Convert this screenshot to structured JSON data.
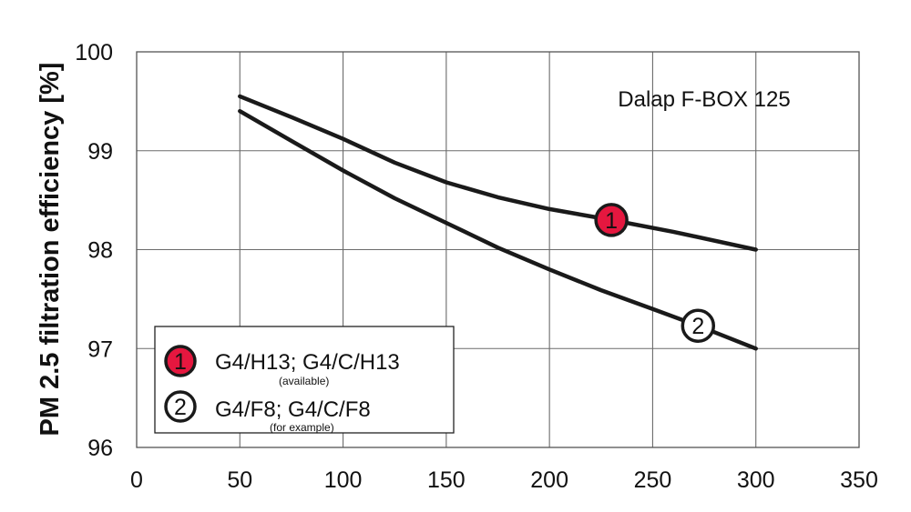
{
  "chart_data": {
    "type": "line",
    "title": "",
    "annotation": "Dalap F-BOX 125",
    "xlabel": "",
    "ylabel": "PM 2.5 filtration efficiency [%]",
    "xlim": [
      0,
      350
    ],
    "ylim": [
      96,
      100
    ],
    "xticks": [
      0,
      50,
      100,
      150,
      200,
      250,
      300,
      350
    ],
    "yticks": [
      96,
      97,
      98,
      99,
      100
    ],
    "xtick_labels": [
      "0",
      "50",
      "100",
      "150",
      "200",
      "250",
      "300",
      "350"
    ],
    "ytick_labels": [
      "96",
      "97",
      "98",
      "99",
      "100"
    ],
    "grid": true,
    "legend_position": "bottom-left",
    "series": [
      {
        "marker_label": "1",
        "legend_text": "G4/H13; G4/C/H13",
        "legend_note": "(available)",
        "marker_color": "#e5173f",
        "marker_at_x": 230,
        "x": [
          50,
          75,
          100,
          125,
          150,
          175,
          200,
          230,
          260,
          300
        ],
        "y": [
          99.55,
          99.34,
          99.12,
          98.88,
          98.68,
          98.53,
          98.41,
          98.3,
          98.18,
          98.0
        ]
      },
      {
        "marker_label": "2",
        "legend_text": "G4/F8; G4/C/F8",
        "legend_note": "(for example)",
        "marker_color": "#ffffff",
        "marker_at_x": 272,
        "x": [
          50,
          75,
          100,
          125,
          150,
          175,
          200,
          225,
          250,
          272,
          300
        ],
        "y": [
          99.4,
          99.1,
          98.8,
          98.52,
          98.27,
          98.02,
          97.8,
          97.59,
          97.4,
          97.23,
          97.0
        ]
      }
    ]
  }
}
